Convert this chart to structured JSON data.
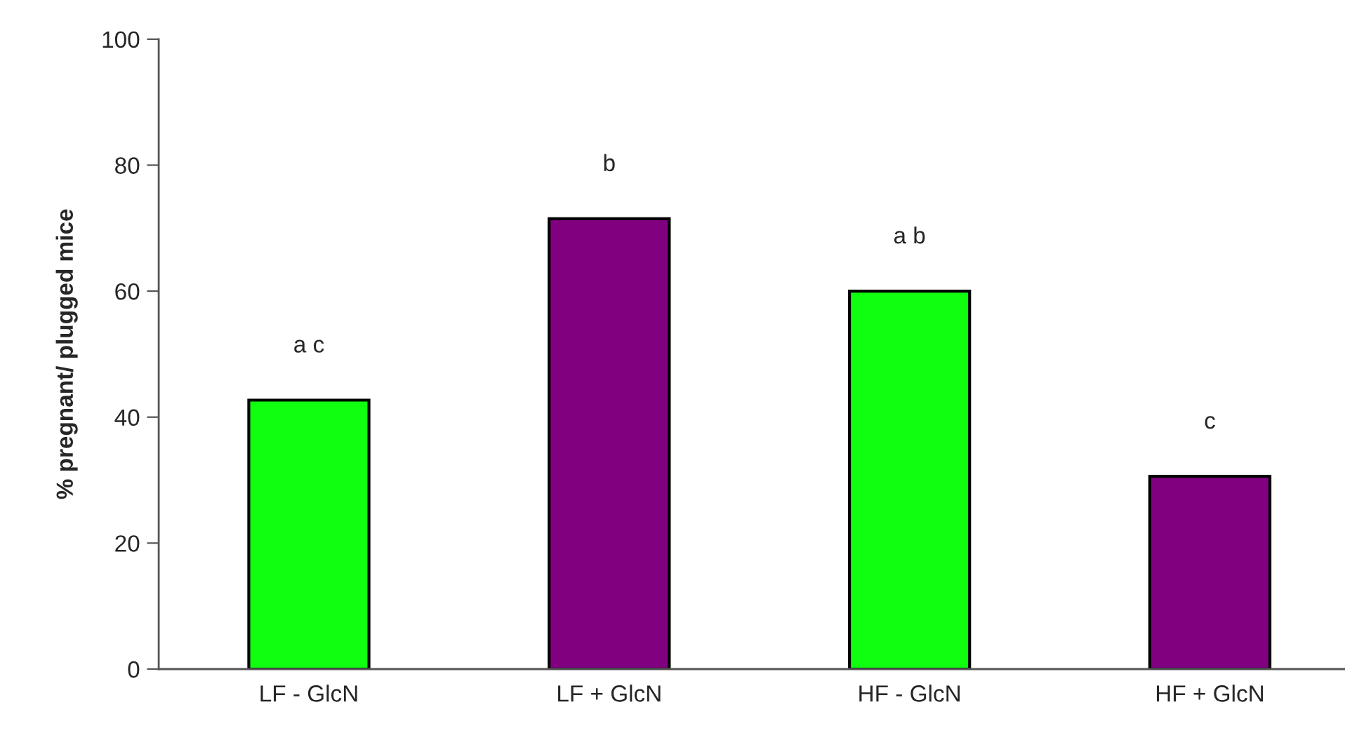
{
  "chart_data": {
    "type": "bar",
    "ylabel": "% pregnant/ plugged mice",
    "categories": [
      "LF - GlcN",
      "LF + GlcN",
      "HF - GlcN",
      "HF + GlcN"
    ],
    "values": [
      42.7,
      71.5,
      60.0,
      30.6
    ],
    "colors": [
      "#10ff10",
      "#800080",
      "#10ff10",
      "#800080"
    ],
    "ylim": [
      0,
      100
    ],
    "yticks": [
      0,
      20,
      40,
      60,
      80,
      100
    ],
    "grid": false,
    "legend": false,
    "annotations": [
      "a c",
      "b",
      "a b",
      "c"
    ]
  }
}
